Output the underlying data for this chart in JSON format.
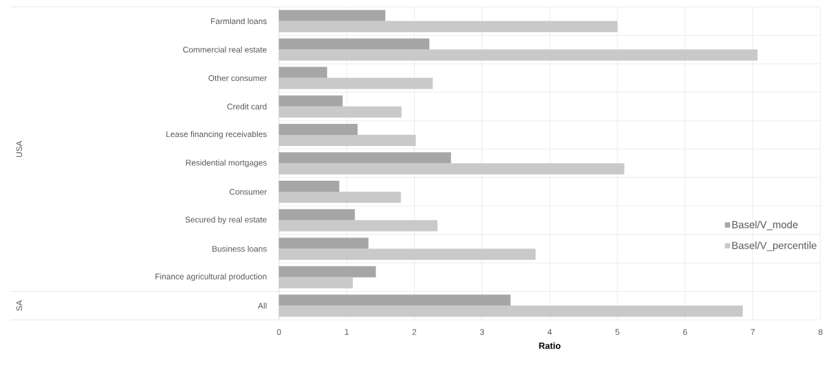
{
  "chart_data": {
    "type": "bar",
    "orientation": "horizontal",
    "categories": [
      "Farmland loans",
      "Commercial real estate",
      "Other consumer",
      "Credit card",
      "Lease financing receivables",
      "Residential mortgages",
      "Consumer",
      "Secured by real estate",
      "Business loans",
      "Finance agricultural production",
      "All"
    ],
    "series": [
      {
        "name": "Basel/V_mode",
        "color": "#a6a6a6",
        "values": [
          1.57,
          2.22,
          0.71,
          0.94,
          1.16,
          2.54,
          0.89,
          1.12,
          1.32,
          1.43,
          3.42
        ]
      },
      {
        "name": "Basel/V_percentile",
        "color": "#c9c9c9",
        "values": [
          5.0,
          7.07,
          2.27,
          1.81,
          2.02,
          5.1,
          1.8,
          2.34,
          3.79,
          1.09,
          6.85
        ]
      }
    ],
    "xlim": [
      0,
      8
    ],
    "xticks": [
      0,
      1,
      2,
      3,
      4,
      5,
      6,
      7,
      8
    ],
    "xlabel": "Ratio",
    "annotations": [
      "USA",
      "SA"
    ],
    "grid": true,
    "legend": "right"
  }
}
